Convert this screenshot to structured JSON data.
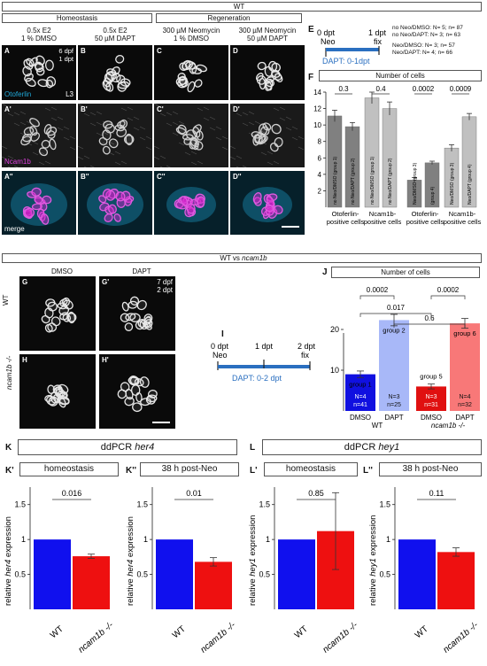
{
  "fig_top": {
    "wt": "WT",
    "homeostasis": "Homeostasis",
    "regeneration": "Regeneration",
    "cols": [
      "0.5x E2",
      "0.5x E2",
      "300 µM Neomycin",
      "300 µM Neomycin"
    ],
    "cols2": [
      "1 % DMSO",
      "50 µM DAPT",
      "1 % DMSO",
      "50 µM DAPT"
    ],
    "rowA": [
      "A",
      "B",
      "C",
      "D"
    ],
    "rowA2": [
      "A'",
      "B'",
      "C'",
      "D'"
    ],
    "rowA3": [
      "A''",
      "B''",
      "C''",
      "D''"
    ],
    "age": "6 dpf",
    "dpt": "1 dpt",
    "l3": "L3",
    "otoferlin": "Otoferlin",
    "ncam": "Ncam1b",
    "merge": "merge"
  },
  "panelE": {
    "label": "E",
    "zero": "0 dpt",
    "neo": "Neo",
    "one": "1 dpt",
    "fix": "fix",
    "dapt": "DAPT: 0-1dpt",
    "groups": [
      {
        "name": "no Neo/DMSO:",
        "stats": "N= 5; n= 87"
      },
      {
        "name": "no Neo/DAPT:",
        "stats": "N= 3; n= 63"
      },
      {
        "name": "Neo/DMSO:",
        "stats": "N= 3; n= 57"
      },
      {
        "name": "Neo/DAPT:",
        "stats": "N= 4; n= 66"
      }
    ]
  },
  "panelF": {
    "label": "F",
    "title": "Number of cells",
    "pvals": [
      "0.3",
      "0.4",
      "0.0002",
      "0.0009"
    ],
    "groups_x": [
      "Otoferlin-",
      "positive cells",
      "Ncam1b-",
      "positive cells",
      "Otoferlin-",
      "positive cells",
      "Ncam1b-",
      "positive cells"
    ],
    "bar_labels": [
      "no Neo/DMSO (group 1)",
      "no Neo/DAPT (group 2)",
      "no Neo/DMSO (group 1)",
      "no Neo/DAPT (group 2)",
      "Neo/DMSO (group 3)",
      "(group 4)",
      "Neo/DMSO (group 3)",
      "Neo/DAPT (group 4)"
    ],
    "chart_data": {
      "type": "bar",
      "ylim": [
        0,
        14
      ],
      "yticks": [
        "2",
        "4",
        "6",
        "8",
        "10",
        "12",
        "14"
      ],
      "values": [
        11.1,
        9.8,
        13.3,
        12.0,
        3.3,
        5.4,
        7.2,
        11.0
      ],
      "errors": [
        0.7,
        0.5,
        0.7,
        0.8,
        0.3,
        0.2,
        0.4,
        0.4
      ]
    }
  },
  "fig_mid": {
    "title_a": "WT vs ",
    "title_b": "ncam1b",
    "dmso": "DMSO",
    "dapt": "DAPT",
    "g": "G",
    "g2": "G'",
    "h": "H",
    "h2": "H'",
    "age": "7 dpf",
    "dpt": "2 dpt",
    "wt": "WT",
    "mut": "ncam1b -/-"
  },
  "panelI": {
    "label": "I",
    "zero": "0 dpt",
    "neo": "Neo",
    "one": "1 dpt",
    "two": "2 dpt",
    "fix": "fix",
    "dapt": "DAPT: 0-2 dpt"
  },
  "panelJ": {
    "label": "J",
    "title": "Number of cells",
    "pvals": [
      "0.0002",
      "0.0002",
      "0.017",
      "0.6"
    ],
    "groups": [
      "group 1",
      "group 2",
      "group 5",
      "group 6"
    ],
    "Ns": [
      "N=4",
      "N=3",
      "N=3",
      "N=4"
    ],
    "ns": [
      "n=41",
      "n=25",
      "n=31",
      "n=32"
    ],
    "xl": [
      "DMSO",
      "DAPT",
      "DMSO",
      "DAPT"
    ],
    "geno": [
      "WT",
      "ncam1b -/-"
    ],
    "chart_data": {
      "type": "bar",
      "ylim": [
        0,
        30
      ],
      "yticks": [
        "10",
        "20"
      ],
      "values": [
        9.0,
        22.3,
        6.0,
        21.5
      ],
      "errors": [
        0.8,
        1.4,
        0.6,
        1.2
      ],
      "colors": [
        "#1010e0",
        "#a8b8f8",
        "#e01010",
        "#f87878"
      ]
    }
  },
  "panelK": {
    "label": "K",
    "title_a": "ddPCR ",
    "title_b": "her4",
    "sub1_label": "K'",
    "sub1": "homeostasis",
    "sub2_label": "K''",
    "sub2": "38 h post-Neo",
    "ylabel_a": "relative ",
    "ylabel_b": "her4",
    "ylabel_c": " expression",
    "c1": {
      "p": "0.016",
      "values": [
        1.0,
        0.76
      ],
      "errors": [
        0,
        0.03
      ]
    },
    "c2": {
      "p": "0.01",
      "values": [
        1.0,
        0.68
      ],
      "errors": [
        0,
        0.06
      ]
    }
  },
  "panelL": {
    "label": "L",
    "title_a": "ddPCR ",
    "title_b": "hey1",
    "sub1_label": "L'",
    "sub1": "homeostasis",
    "sub2_label": "L''",
    "sub2": "38 h post-Neo",
    "ylabel_a": "relative ",
    "ylabel_b": "hey1",
    "ylabel_c": " expression",
    "c1": {
      "p": "0.85",
      "values": [
        1.0,
        1.12
      ],
      "errors": [
        0,
        0.55
      ]
    },
    "c2": {
      "p": "0.11",
      "values": [
        1.0,
        0.82
      ],
      "errors": [
        0,
        0.06
      ]
    }
  },
  "ddpcr_axis": {
    "ylim": [
      0,
      1.75
    ],
    "yticks": [
      "0.5",
      "1",
      "1.5"
    ],
    "x": [
      "WT",
      "ncam1b -/-"
    ]
  },
  "colors": {
    "blue": "#1010ee",
    "red": "#ee1010",
    "cyan": "#1fa8d8",
    "magenta": "#d020c8",
    "grey_dark": "#888",
    "grey_light": "#c8c8c8"
  }
}
